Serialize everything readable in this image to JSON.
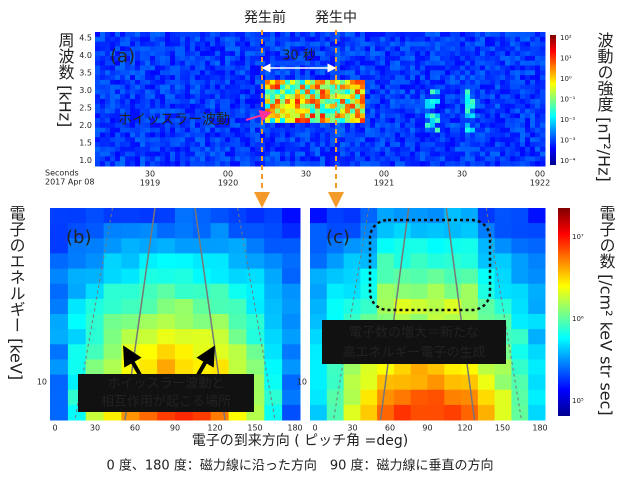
{
  "header": {
    "before": "発生前",
    "during": "発生中"
  },
  "panel_a": {
    "label": "(a)",
    "y_axis_title": "周波数 [kHz]",
    "colorbar_title": "波動の強度 [nT²/Hz]",
    "y_ticks": [
      "4.5",
      "4.0",
      "3.5",
      "3.0",
      "2.5",
      "2.0",
      "1.5",
      "1.0"
    ],
    "x_axis_caption": [
      "Seconds",
      "2017 Apr 08"
    ],
    "x_ticks": [
      {
        "top": "30",
        "bottom": "1919"
      },
      {
        "top": "00",
        "bottom": "1920"
      },
      {
        "top": "30"
      },
      {
        "top": "00",
        "bottom": "1921"
      },
      {
        "top": "30"
      },
      {
        "top": "00",
        "bottom": "1922"
      }
    ],
    "colorbar_ticks": [
      "10²",
      "10¹",
      "10⁰",
      "10⁻¹",
      "10⁻²",
      "10⁻³",
      "10⁻⁴"
    ],
    "duration": "30 秒",
    "wave_label": "ホイッスラー波動"
  },
  "panel_b": {
    "label": "(b)",
    "y_tick": "10",
    "x_ticks": [
      "0",
      "30",
      "60",
      "90",
      "120",
      "150",
      "180"
    ],
    "note": [
      "ホイッスラー波動と",
      "相互作用が起こる場所"
    ]
  },
  "panel_c": {
    "label": "(c)",
    "y_tick": "10",
    "x_ticks": [
      "0",
      "30",
      "60",
      "90",
      "120",
      "150",
      "180"
    ],
    "note": [
      "電子数の増大＝新たな",
      "高エネルギー電子の生成"
    ]
  },
  "left_title": "電子のエネルギー [keV]",
  "right_title": "電子の数 [/cm² keV str sec]",
  "colorbar2_ticks": [
    "10⁷",
    "10⁶",
    "10⁵"
  ],
  "x_title": "電子の到来方向 ( ピッチ角 =deg)",
  "footnote": "0 度、180 度：磁力線に沿った方向　90 度：磁力線に垂直の方向"
}
